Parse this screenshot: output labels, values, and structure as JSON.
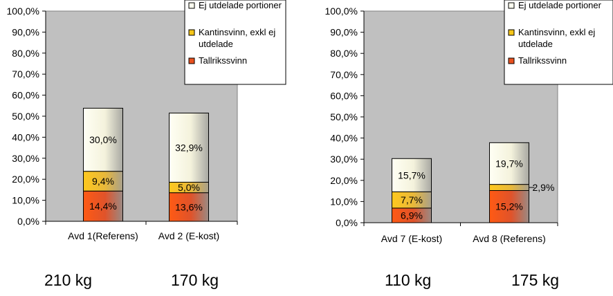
{
  "chart_data": [
    {
      "type": "bar",
      "stacked": true,
      "categories": [
        "Avd 1(Referens)",
        "Avd 2 (E-kost)"
      ],
      "series": [
        {
          "name": "Tallrikssvinn",
          "values": [
            14.4,
            13.6
          ],
          "labels": [
            "14,4%",
            "13,6%"
          ]
        },
        {
          "name": "Kantinsvinn, exkl ej utdelade",
          "values": [
            9.4,
            5.0
          ],
          "labels": [
            "9,4%",
            "5,0%"
          ]
        },
        {
          "name": "Ej utdelade portioner",
          "values": [
            30.0,
            32.9
          ],
          "labels": [
            "30,0%",
            "32,9%"
          ]
        }
      ],
      "ylim": [
        0,
        100
      ],
      "yticks": [
        "0,0%",
        "10,0%",
        "20,0%",
        "30,0%",
        "40,0%",
        "50,0%",
        "60,0%",
        "70,0%",
        "80,0%",
        "90,0%",
        "100,0%"
      ],
      "grid": false,
      "legend_position": "top-right",
      "legend_entries": [
        "Ej utdelade portioner",
        "Kantinsvinn, exkl ej",
        "utdelade",
        "Tallrikssvinn"
      ],
      "weights": [
        "210 kg",
        "170 kg"
      ]
    },
    {
      "type": "bar",
      "stacked": true,
      "categories": [
        "Avd 7 (E-kost)",
        "Avd 8 (Referens)"
      ],
      "series": [
        {
          "name": "Tallrikssvinn",
          "values": [
            6.9,
            15.2
          ],
          "labels": [
            "6,9%",
            "15,2%"
          ]
        },
        {
          "name": "Kantinsvinn, exkl ej utdelade",
          "values": [
            7.7,
            2.9
          ],
          "labels": [
            "7,7%",
            "2,9%"
          ]
        },
        {
          "name": "Ej utdelade portioner",
          "values": [
            15.7,
            19.7
          ],
          "labels": [
            "15,7%",
            "19,7%"
          ]
        }
      ],
      "ylim": [
        0,
        100
      ],
      "yticks": [
        "0,0%",
        "10,0%",
        "20,0%",
        "30,0%",
        "40,0%",
        "50,0%",
        "60,0%",
        "70,0%",
        "80,0%",
        "90,0%",
        "100,0%"
      ],
      "grid": false,
      "legend_position": "top-right",
      "legend_entries": [
        "Ej utdelade portioner",
        "Kantinsvinn, exkl ej",
        "utdelade",
        "Tallrikssvinn"
      ],
      "weights": [
        "110 kg",
        "175 kg"
      ]
    }
  ],
  "colors": {
    "plot_bg": "#c0c0c0",
    "tallrikssvinn": "#e8501e",
    "kantinsvinn": "#f5c518",
    "ej_utdelade": "#fffff0"
  }
}
